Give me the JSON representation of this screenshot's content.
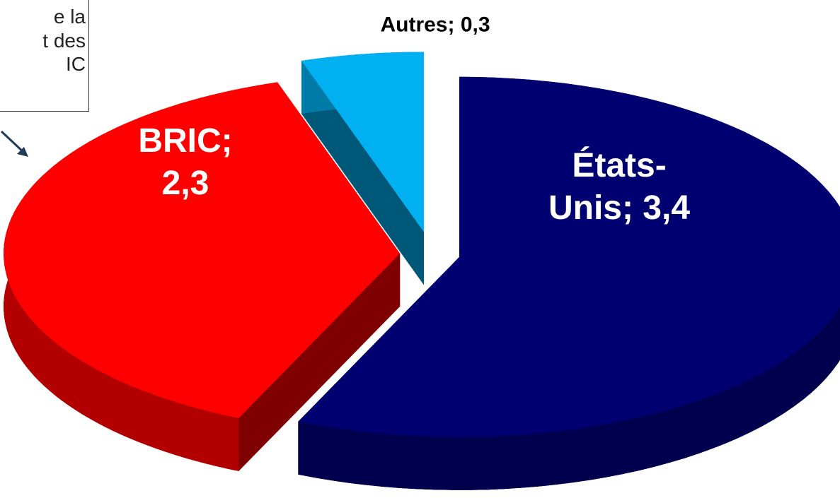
{
  "chart_data": {
    "type": "pie",
    "values": [
      0.3,
      3.4,
      2.3
    ],
    "value_labels": [
      "Autres; 0,3",
      "États-Unis; 3,4",
      "BRIC; 2,3"
    ],
    "colors": [
      "#00b0f0",
      "#000070",
      "#ff0000"
    ],
    "annotation": [
      "e la",
      "t des",
      "IC"
    ]
  }
}
